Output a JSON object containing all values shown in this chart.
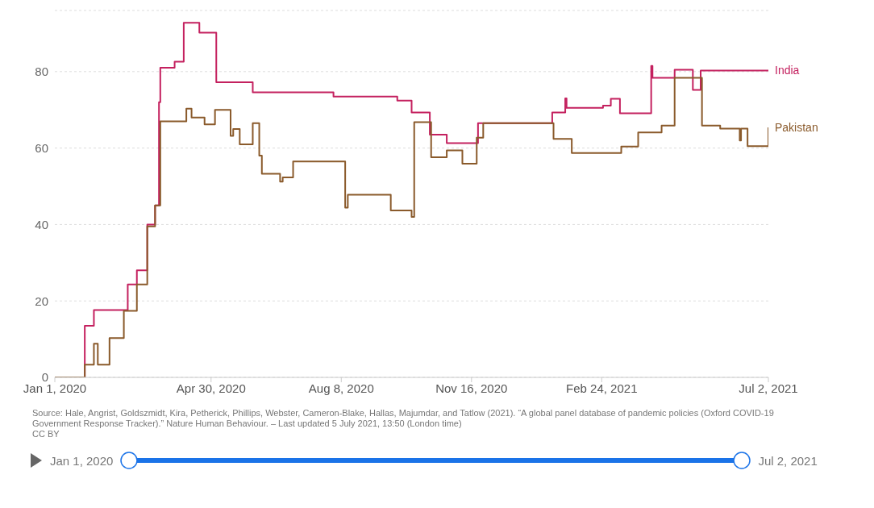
{
  "chart_data": {
    "type": "step",
    "xlim": [
      "2020-01-01",
      "2021-07-02"
    ],
    "xticks": [
      {
        "value": "2020-01-01",
        "label": "Jan 1, 2020"
      },
      {
        "value": "2020-04-30",
        "label": "Apr 30, 2020"
      },
      {
        "value": "2020-08-08",
        "label": "Aug 8, 2020"
      },
      {
        "value": "2020-11-16",
        "label": "Nov 16, 2020"
      },
      {
        "value": "2021-02-24",
        "label": "Feb 24, 2021"
      },
      {
        "value": "2021-07-02",
        "label": "Jul 2, 2021"
      }
    ],
    "ylim": [
      0,
      96
    ],
    "yticks": [
      0,
      20,
      40,
      60,
      80
    ],
    "grid": "y",
    "legend": "right",
    "series": [
      {
        "name": "India",
        "color": "#c4215f",
        "x": [
          "2020-01-01",
          "2020-01-24",
          "2020-01-31",
          "2020-02-26",
          "2020-03-04",
          "2020-03-12",
          "2020-03-18",
          "2020-03-21",
          "2020-03-22",
          "2020-04-02",
          "2020-04-09",
          "2020-04-21",
          "2020-05-04",
          "2020-06-01",
          "2020-08-02",
          "2020-09-20",
          "2020-10-01",
          "2020-10-15",
          "2020-10-28",
          "2020-11-21",
          "2021-01-17",
          "2021-01-27",
          "2021-01-28",
          "2021-02-25",
          "2021-03-03",
          "2021-03-10",
          "2021-04-03",
          "2021-04-04",
          "2021-04-21",
          "2021-05-05",
          "2021-05-11",
          "2021-07-02"
        ],
        "values": [
          0,
          13.5,
          17.6,
          24.3,
          28,
          40,
          45,
          72,
          81,
          82.6,
          92.8,
          90.2,
          77.2,
          74.6,
          73.5,
          72.4,
          69.3,
          63.5,
          61.3,
          66.5,
          69.3,
          73,
          70.5,
          71.1,
          72.9,
          69.1,
          81.5,
          78.4,
          80.5,
          75.2,
          80.3,
          80.3
        ]
      },
      {
        "name": "Pakistan",
        "color": "#8a5a2b",
        "x": [
          "2020-01-01",
          "2020-01-24",
          "2020-01-31",
          "2020-02-03",
          "2020-02-12",
          "2020-02-23",
          "2020-03-04",
          "2020-03-12",
          "2020-03-18",
          "2020-03-22",
          "2020-04-11",
          "2020-04-15",
          "2020-04-25",
          "2020-05-03",
          "2020-05-15",
          "2020-05-17",
          "2020-05-22",
          "2020-06-01",
          "2020-06-06",
          "2020-06-08",
          "2020-06-22",
          "2020-06-24",
          "2020-07-02",
          "2020-08-11",
          "2020-08-13",
          "2020-09-15",
          "2020-10-01",
          "2020-10-03",
          "2020-10-16",
          "2020-10-28",
          "2020-11-09",
          "2020-11-20",
          "2020-11-25",
          "2021-01-18",
          "2021-02-01",
          "2021-03-11",
          "2021-03-24",
          "2021-04-11",
          "2021-04-21",
          "2021-05-12",
          "2021-05-26",
          "2021-06-10",
          "2021-06-11",
          "2021-06-16",
          "2021-07-02"
        ],
        "values": [
          0,
          3.3,
          8.8,
          3.3,
          10.3,
          17.4,
          24.3,
          39.5,
          45,
          67,
          70.3,
          68,
          66.2,
          70,
          63.2,
          65,
          61,
          66.5,
          58,
          53.3,
          51.2,
          52.3,
          56.5,
          44.4,
          47.8,
          43.7,
          42,
          66.8,
          57.6,
          59.4,
          55.9,
          62.7,
          66.5,
          62.4,
          58.7,
          60.4,
          64.1,
          65.9,
          78.4,
          65.9,
          65.1,
          62,
          65.1,
          60.5,
          65.4
        ]
      }
    ],
    "annotations": [
      "Source: Hale, Angrist, Goldszmidt, Kira, Petherick, Phillips, Webster, Cameron-Blake, Hallas, Majumdar, and Tatlow (2021). “A global panel database of pandemic policies (Oxford COVID-19 Government Response Tracker).” Nature Human Behaviour. – Last updated 5 July 2021, 13:50 (London time)",
      "CC BY",
      "Jan 1, 2020",
      "Jul 2, 2021"
    ]
  }
}
